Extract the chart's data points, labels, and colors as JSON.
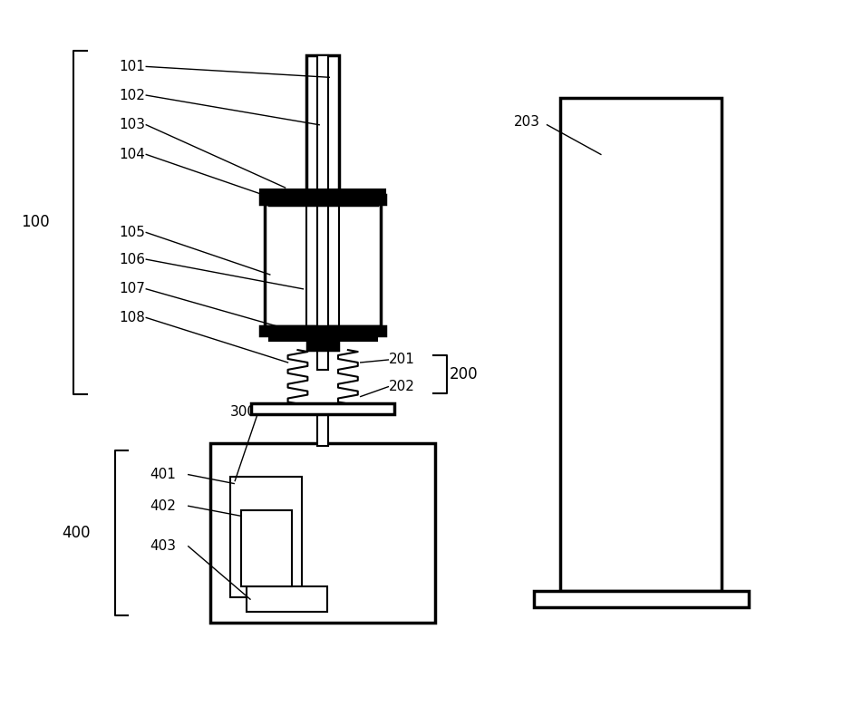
{
  "bg_color": "#ffffff",
  "line_color": "#000000",
  "thick_lw": 2.5,
  "thin_lw": 1.5,
  "label_fontsize": 11
}
